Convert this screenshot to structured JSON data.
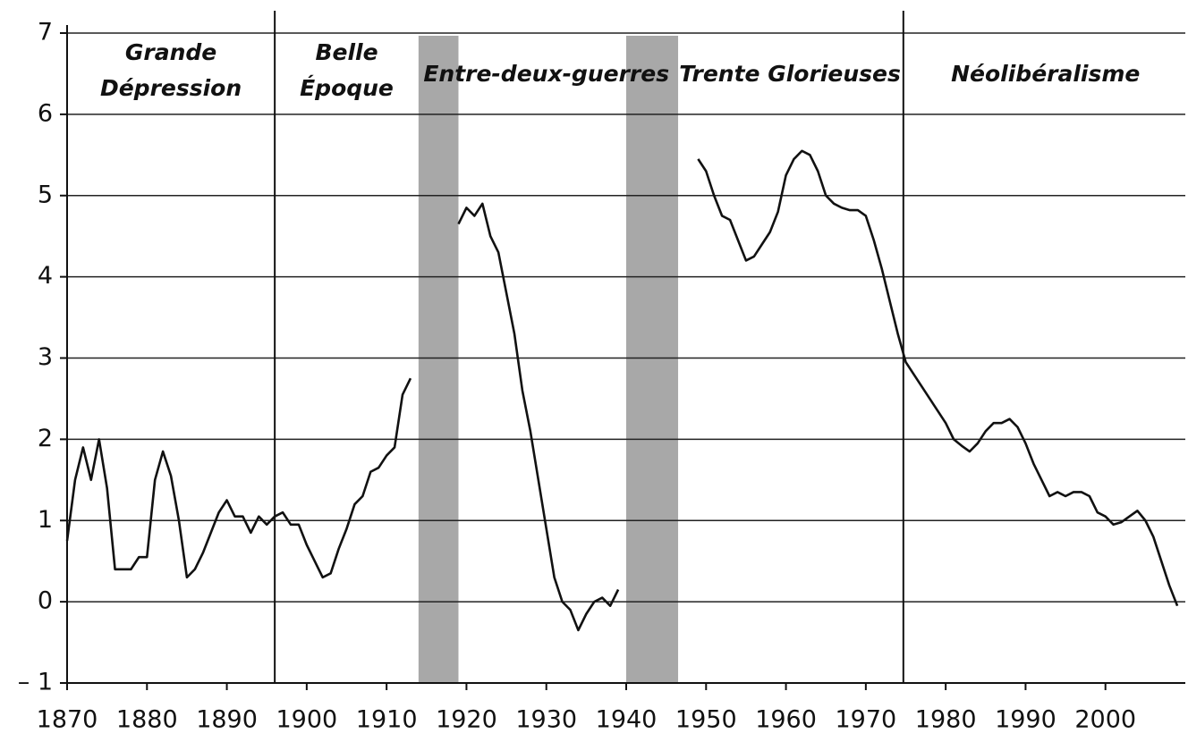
{
  "chart_data": {
    "type": "line",
    "color": "#111111",
    "x": [
      1870,
      1871,
      1872,
      1873,
      1874,
      1875,
      1876,
      1877,
      1878,
      1879,
      1880,
      1881,
      1882,
      1883,
      1884,
      1885,
      1886,
      1887,
      1888,
      1889,
      1890,
      1891,
      1892,
      1893,
      1894,
      1895,
      1896,
      1897,
      1898,
      1899,
      1900,
      1901,
      1902,
      1903,
      1904,
      1905,
      1906,
      1907,
      1908,
      1909,
      1910,
      1911,
      1912,
      1913,
      1914,
      1915,
      1916,
      1917,
      1918,
      1919,
      1920,
      1921,
      1922,
      1923,
      1924,
      1925,
      1926,
      1927,
      1928,
      1929,
      1930,
      1931,
      1932,
      1933,
      1934,
      1935,
      1936,
      1937,
      1938,
      1939,
      1940,
      1941,
      1942,
      1943,
      1944,
      1945,
      1946,
      1947,
      1948,
      1949,
      1950,
      1951,
      1952,
      1953,
      1954,
      1955,
      1956,
      1957,
      1958,
      1959,
      1960,
      1961,
      1962,
      1963,
      1964,
      1965,
      1966,
      1967,
      1968,
      1969,
      1970,
      1971,
      1972,
      1973,
      1974,
      1975,
      1976,
      1977,
      1978,
      1979,
      1980,
      1981,
      1982,
      1983,
      1984,
      1985,
      1986,
      1987,
      1988,
      1989,
      1990,
      1991,
      1992,
      1993,
      1994,
      1995,
      1996,
      1997,
      1998,
      1999,
      2000,
      2001,
      2002,
      2003,
      2004,
      2005,
      2006,
      2007,
      2008,
      2009
    ],
    "values": [
      0.75,
      1.5,
      1.9,
      1.5,
      2.0,
      1.4,
      0.4,
      0.4,
      0.4,
      0.55,
      0.55,
      1.5,
      1.85,
      1.55,
      1.0,
      0.3,
      0.4,
      0.6,
      0.85,
      1.1,
      1.25,
      1.05,
      1.05,
      0.85,
      1.05,
      0.95,
      1.05,
      1.1,
      0.95,
      0.95,
      0.7,
      0.5,
      0.3,
      0.35,
      0.65,
      0.9,
      1.2,
      1.3,
      1.6,
      1.65,
      1.8,
      1.9,
      2.55,
      2.75,
      null,
      null,
      null,
      null,
      null,
      4.65,
      4.85,
      4.75,
      4.9,
      4.5,
      4.3,
      3.8,
      3.3,
      2.6,
      2.1,
      1.5,
      0.9,
      0.3,
      0,
      -0.1,
      -0.35,
      -0.15,
      0,
      0.05,
      -0.05,
      0.15,
      null,
      null,
      null,
      null,
      null,
      null,
      null,
      null,
      null,
      5.45,
      5.3,
      5.0,
      4.75,
      4.7,
      4.45,
      4.2,
      4.25,
      4.4,
      4.55,
      4.8,
      5.25,
      5.45,
      5.55,
      5.5,
      5.3,
      5.0,
      4.9,
      4.85,
      4.82,
      4.82,
      4.75,
      4.45,
      4.1,
      3.7,
      3.3,
      2.95,
      2.8,
      2.65,
      2.5,
      2.35,
      2.2,
      2.0,
      1.92,
      1.85,
      1.95,
      2.1,
      2.2,
      2.2,
      2.25,
      2.15,
      1.95,
      1.7,
      1.5,
      1.3,
      1.35,
      1.3,
      1.35,
      1.35,
      1.3,
      1.1,
      1.05,
      0.95,
      0.98,
      1.05,
      1.12,
      1.0,
      0.8,
      0.5,
      0.2,
      -0.05
    ],
    "xlim": [
      1870,
      2010
    ],
    "ylim": [
      -1,
      7
    ],
    "xticks": [
      1870,
      1880,
      1890,
      1900,
      1910,
      1920,
      1930,
      1940,
      1950,
      1960,
      1970,
      1980,
      1990,
      2000
    ],
    "yticks": [
      {
        "value": -1,
        "label": "– 1"
      },
      0,
      1,
      2,
      3,
      4,
      5,
      6,
      7
    ],
    "grid": true,
    "shaded": [
      [
        1914,
        1919
      ],
      [
        1940,
        1946.5
      ]
    ],
    "shade_color": "#a8a8a8",
    "separators": [
      1896,
      1974.7
    ],
    "periods": [
      {
        "lines": [
          "Grande",
          "Dépression"
        ],
        "start": 1870,
        "end": 1896
      },
      {
        "lines": [
          "Belle",
          "Époque"
        ],
        "start": 1896,
        "end": 1914
      },
      {
        "lines": [
          "Entre-deux-guerres"
        ],
        "start": 1914,
        "end": 1946
      },
      {
        "lines": [
          "Trente Glorieuses"
        ],
        "start": 1946,
        "end": 1975
      },
      {
        "lines": [
          "Néolibéralisme"
        ],
        "start": 1975,
        "end": 2010
      }
    ]
  }
}
